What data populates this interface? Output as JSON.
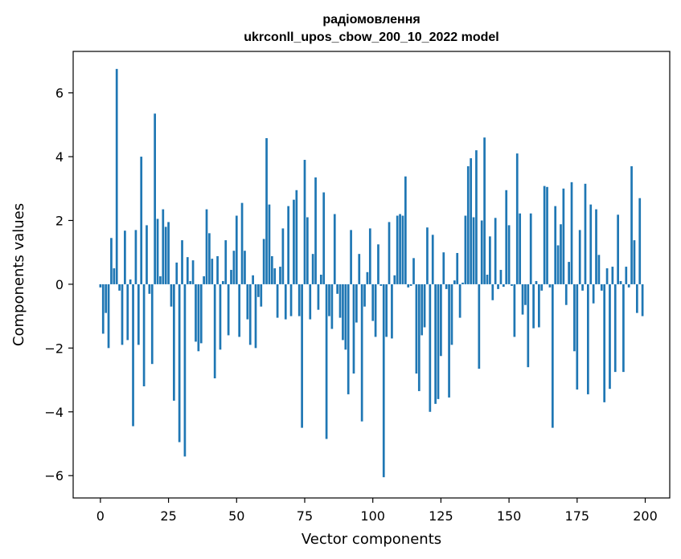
{
  "chart_data": {
    "type": "bar",
    "title": "радіомовлення",
    "subtitle": "ukrconll_upos_cbow_200_10_2022 model",
    "xlabel": "Vector components",
    "ylabel": "Components values",
    "xlim": [
      -10,
      209
    ],
    "ylim": [
      -6.7,
      7.3
    ],
    "xticks": [
      0,
      25,
      50,
      75,
      100,
      125,
      150,
      175,
      200
    ],
    "yticks": [
      -6,
      -4,
      -2,
      0,
      2,
      4,
      6
    ],
    "ytick_labels": [
      "−6",
      "−4",
      "−2",
      "0",
      "2",
      "4",
      "6"
    ],
    "bar_color": "#1f77b4",
    "grid": false,
    "x": [
      0,
      1,
      2,
      3,
      4,
      5,
      6,
      7,
      8,
      9,
      10,
      11,
      12,
      13,
      14,
      15,
      16,
      17,
      18,
      19,
      20,
      21,
      22,
      23,
      24,
      25,
      26,
      27,
      28,
      29,
      30,
      31,
      32,
      33,
      34,
      35,
      36,
      37,
      38,
      39,
      40,
      41,
      42,
      43,
      44,
      45,
      46,
      47,
      48,
      49,
      50,
      51,
      52,
      53,
      54,
      55,
      56,
      57,
      58,
      59,
      60,
      61,
      62,
      63,
      64,
      65,
      66,
      67,
      68,
      69,
      70,
      71,
      72,
      73,
      74,
      75,
      76,
      77,
      78,
      79,
      80,
      81,
      82,
      83,
      84,
      85,
      86,
      87,
      88,
      89,
      90,
      91,
      92,
      93,
      94,
      95,
      96,
      97,
      98,
      99,
      100,
      101,
      102,
      103,
      104,
      105,
      106,
      107,
      108,
      109,
      110,
      111,
      112,
      113,
      114,
      115,
      116,
      117,
      118,
      119,
      120,
      121,
      122,
      123,
      124,
      125,
      126,
      127,
      128,
      129,
      130,
      131,
      132,
      133,
      134,
      135,
      136,
      137,
      138,
      139,
      140,
      141,
      142,
      143,
      144,
      145,
      146,
      147,
      148,
      149,
      150,
      151,
      152,
      153,
      154,
      155,
      156,
      157,
      158,
      159,
      160,
      161,
      162,
      163,
      164,
      165,
      166,
      167,
      168,
      169,
      170,
      171,
      172,
      173,
      174,
      175,
      176,
      177,
      178,
      179,
      180,
      181,
      182,
      183,
      184,
      185,
      186,
      187,
      188,
      189,
      190,
      191,
      192,
      193,
      194,
      195,
      196,
      197,
      198,
      199
    ],
    "values": [
      -0.1,
      -1.55,
      -0.9,
      -2.0,
      1.45,
      0.5,
      6.75,
      -0.2,
      -1.9,
      1.68,
      -1.75,
      0.15,
      -4.45,
      1.7,
      -1.9,
      4.0,
      -3.2,
      1.85,
      -0.3,
      -2.5,
      5.35,
      2.05,
      0.25,
      2.35,
      1.8,
      1.95,
      -0.7,
      -3.65,
      0.68,
      -4.95,
      1.38,
      -5.4,
      0.85,
      0.1,
      0.75,
      -1.8,
      -2.1,
      -1.85,
      0.25,
      2.35,
      1.6,
      0.8,
      -2.95,
      0.88,
      -2.05,
      0.1,
      1.38,
      -1.6,
      0.45,
      1.05,
      2.15,
      -1.65,
      2.55,
      1.05,
      -1.1,
      -1.9,
      0.28,
      -2.0,
      -0.4,
      -0.7,
      1.42,
      4.58,
      2.5,
      0.88,
      0.5,
      -1.05,
      0.55,
      1.75,
      -1.1,
      2.45,
      -1.0,
      2.65,
      2.95,
      -1.0,
      -4.5,
      3.9,
      2.1,
      -1.1,
      0.95,
      3.35,
      -0.8,
      0.3,
      2.88,
      -4.85,
      -1.0,
      -1.4,
      2.2,
      -0.3,
      -1.05,
      -1.75,
      -2.05,
      -3.45,
      1.7,
      -2.8,
      -1.2,
      0.95,
      -4.3,
      -0.7,
      0.38,
      1.75,
      -1.15,
      -1.65,
      1.25,
      -0.05,
      -6.05,
      -1.65,
      1.95,
      -1.7,
      0.28,
      2.15,
      2.2,
      2.15,
      3.38,
      -0.1,
      -0.05,
      0.82,
      -2.8,
      -3.35,
      -1.6,
      -1.35,
      1.78,
      -4.0,
      1.55,
      -3.75,
      -3.6,
      -2.25,
      1.0,
      -0.15,
      -3.55,
      -1.9,
      0.12,
      0.98,
      -1.05,
      0.05,
      2.15,
      3.7,
      3.95,
      2.1,
      4.2,
      -2.65,
      2.0,
      4.6,
      0.3,
      1.5,
      -0.5,
      2.08,
      -0.15,
      0.45,
      -0.08,
      2.95,
      1.85,
      -0.05,
      -1.65,
      4.1,
      2.22,
      -0.95,
      -0.65,
      -2.6,
      2.22,
      -1.38,
      0.1,
      -1.35,
      -0.2,
      3.08,
      3.05,
      -0.1,
      -4.5,
      2.45,
      1.22,
      1.88,
      3.0,
      -0.65,
      0.7,
      3.2,
      -2.1,
      -3.3,
      1.7,
      -0.2,
      3.15,
      -3.45,
      2.5,
      -0.6,
      2.35,
      0.92,
      -0.2,
      -3.7,
      0.5,
      -3.28,
      0.55,
      -2.75,
      2.18,
      0.1,
      -2.75,
      0.55,
      -0.1,
      3.7,
      1.38,
      -0.9,
      2.7,
      -1.0
    ]
  }
}
